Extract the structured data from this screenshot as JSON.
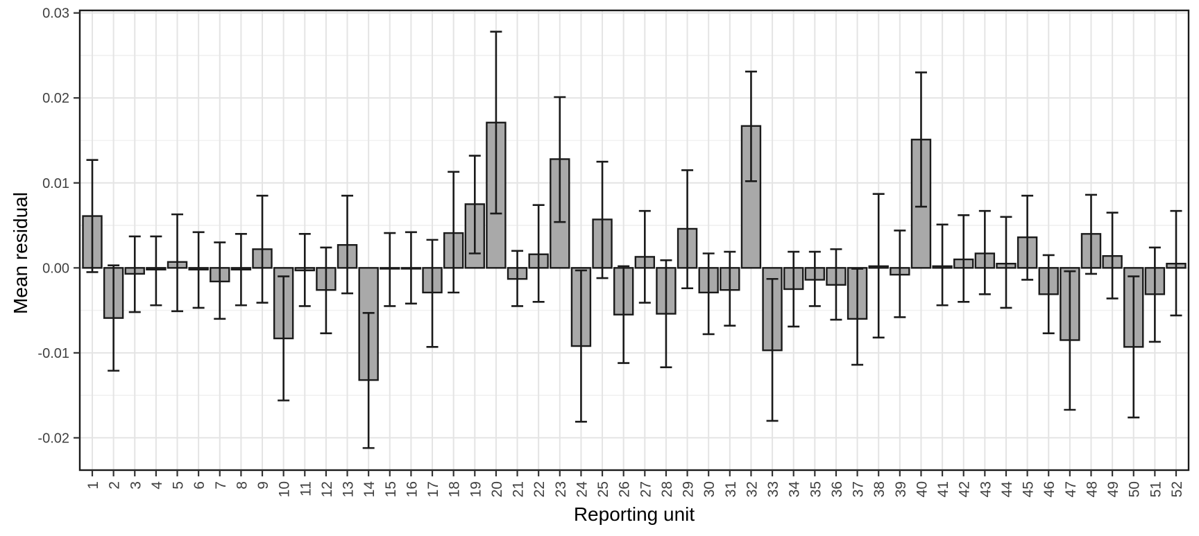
{
  "figure": {
    "kind": "ggplot-style bar chart with error bars",
    "background": "#FFFFFF"
  },
  "chart_data": {
    "type": "bar",
    "title": "",
    "xlabel": "Reporting unit",
    "ylabel": "Mean residual",
    "categories": [
      "1",
      "2",
      "3",
      "4",
      "5",
      "6",
      "7",
      "8",
      "9",
      "10",
      "11",
      "12",
      "13",
      "14",
      "15",
      "16",
      "17",
      "18",
      "19",
      "20",
      "21",
      "22",
      "23",
      "24",
      "25",
      "26",
      "27",
      "28",
      "29",
      "30",
      "31",
      "32",
      "33",
      "34",
      "35",
      "36",
      "37",
      "38",
      "39",
      "40",
      "41",
      "42",
      "43",
      "44",
      "45",
      "46",
      "47",
      "48",
      "49",
      "50",
      "51",
      "52"
    ],
    "values": [
      0.0061,
      -0.0059,
      -0.0007,
      -0.0002,
      0.0007,
      -0.0002,
      -0.0016,
      -0.0002,
      0.0022,
      -0.0083,
      -0.0003,
      -0.0026,
      0.0027,
      -0.0132,
      -0.0001,
      0.0,
      -0.0029,
      0.0041,
      0.0075,
      0.0171,
      -0.0013,
      0.0016,
      0.0128,
      -0.0092,
      0.0057,
      -0.0055,
      0.0013,
      -0.0054,
      0.0046,
      -0.0029,
      -0.0026,
      0.0167,
      -0.0097,
      -0.0025,
      -0.0014,
      -0.002,
      -0.006,
      0.0002,
      -0.0008,
      0.0151,
      0.0002,
      0.001,
      0.0017,
      0.0005,
      0.0036,
      -0.0031,
      -0.0085,
      0.004,
      0.0014,
      -0.0093,
      -0.0031,
      0.0005
    ],
    "error_low": [
      -0.0005,
      -0.0121,
      -0.0052,
      -0.0044,
      -0.0051,
      -0.0047,
      -0.006,
      -0.0044,
      -0.0041,
      -0.0156,
      -0.0045,
      -0.0077,
      -0.003,
      -0.0212,
      -0.0045,
      -0.0042,
      -0.0093,
      -0.0029,
      0.0017,
      0.0064,
      -0.0045,
      -0.004,
      0.0054,
      -0.0181,
      -0.0012,
      -0.0112,
      -0.0041,
      -0.0117,
      -0.0024,
      -0.0078,
      -0.0068,
      0.0102,
      -0.018,
      -0.0069,
      -0.0045,
      -0.0061,
      -0.0114,
      -0.0082,
      -0.0058,
      0.0072,
      -0.0044,
      -0.004,
      -0.0031,
      -0.0047,
      -0.0014,
      -0.0077,
      -0.0167,
      -0.0007,
      -0.0036,
      -0.0176,
      -0.0087,
      -0.0056
    ],
    "error_high": [
      0.0127,
      0.0003,
      0.0037,
      0.0037,
      0.0063,
      0.0042,
      0.003,
      0.004,
      0.0085,
      -0.001,
      0.004,
      0.0024,
      0.0085,
      -0.0053,
      0.0041,
      0.0042,
      0.0033,
      0.0113,
      0.0132,
      0.0278,
      0.002,
      0.0074,
      0.0201,
      -0.0003,
      0.0125,
      0.0002,
      0.0067,
      0.0009,
      0.0115,
      0.0017,
      0.0019,
      0.0231,
      -0.0013,
      0.0019,
      0.0019,
      0.0022,
      -0.0001,
      0.0087,
      0.0044,
      0.023,
      0.0051,
      0.0062,
      0.0067,
      0.006,
      0.0085,
      0.0015,
      -0.0004,
      0.0086,
      0.0065,
      -0.001,
      0.0024,
      0.0067
    ],
    "ytick_values": [
      0.03,
      0.02,
      0.01,
      0,
      -0.01,
      -0.02
    ],
    "ytick_labels": [
      "0.03",
      "0.02",
      "0.01",
      "0.00",
      "-0.01",
      "-0.02"
    ],
    "yminor_values": [
      0.025,
      0.015,
      0.005,
      -0.005,
      -0.015
    ],
    "ylim": [
      -0.0238,
      0.0303
    ],
    "grid": "major and minor horizontal, major vertical per category",
    "legend_position": "none",
    "colors": {
      "bar_fill": "#A9A9A9",
      "bar_stroke": "#1A1A1A",
      "error_bar": "#1A1A1A",
      "grid_major": "#E4E4E4",
      "grid_minor": "#F1F1F1",
      "panel_border": "#1A1A1A",
      "tick_mark": "#333333",
      "tick_label": "#404040",
      "axis_title": "#000000",
      "panel_background": "#FFFFFF"
    }
  }
}
